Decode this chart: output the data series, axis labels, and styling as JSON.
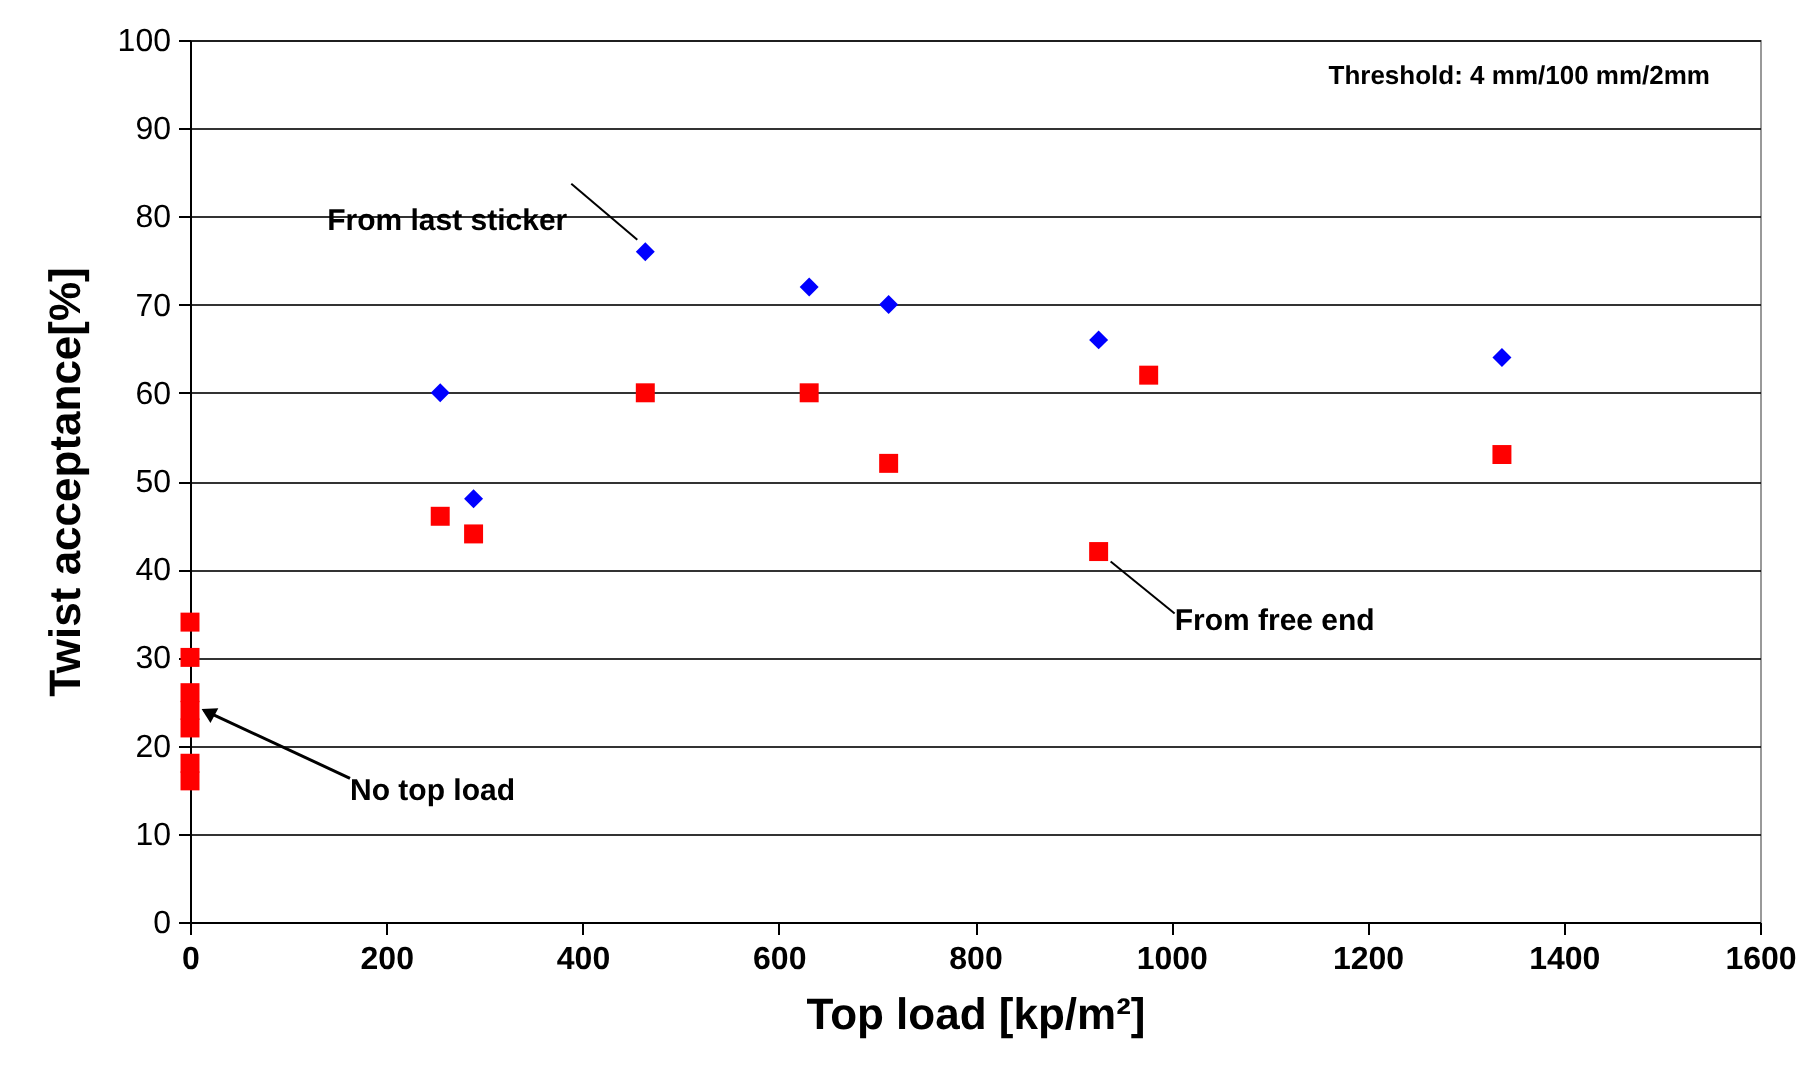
{
  "chart_data": {
    "type": "scatter",
    "xlabel": "Top load [kp/m²]",
    "ylabel": "Twist acceptance[%]",
    "xlim": [
      0,
      1600
    ],
    "xticks": [
      0,
      200,
      400,
      600,
      800,
      1000,
      1200,
      1400,
      1600
    ],
    "ylim": [
      0,
      100
    ],
    "yticks": [
      0,
      10,
      20,
      30,
      40,
      50,
      60,
      70,
      80,
      90,
      100
    ],
    "grid": "y",
    "series": [
      {
        "color": "#0000ff",
        "marker": "diamond",
        "x": [
          255,
          289,
          464,
          631,
          712,
          926,
          1337
        ],
        "values": [
          60,
          48,
          76,
          72,
          70,
          66,
          64
        ]
      },
      {
        "color": "#ff0000",
        "marker": "square",
        "x": [
          0,
          0,
          0,
          0,
          0,
          0,
          0,
          255,
          289,
          464,
          631,
          712,
          926,
          977,
          1337
        ],
        "values": [
          34,
          30,
          26,
          24,
          22,
          18,
          16,
          46,
          44,
          60,
          60,
          52,
          42,
          62,
          53
        ]
      }
    ],
    "annotations": [
      "Threshold: 4 mm/100 mm/2mm",
      {
        "text": "From last sticker",
        "x": 464,
        "y": 76
      },
      {
        "text": "From free end",
        "x": 926,
        "y": 42
      },
      {
        "text": "No top load",
        "x": 0,
        "y": 24
      }
    ]
  }
}
